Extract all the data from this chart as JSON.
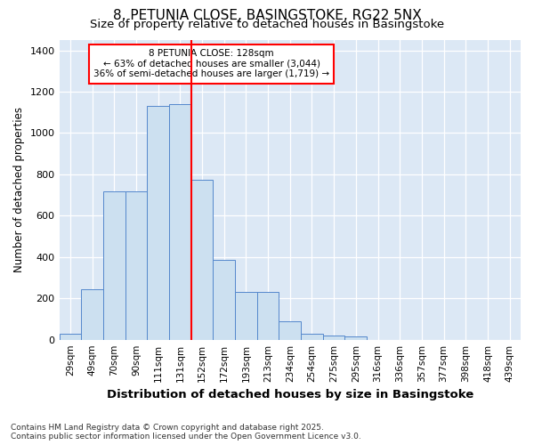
{
  "title1": "8, PETUNIA CLOSE, BASINGSTOKE, RG22 5NX",
  "title2": "Size of property relative to detached houses in Basingstoke",
  "xlabel": "Distribution of detached houses by size in Basingstoke",
  "ylabel": "Number of detached properties",
  "categories": [
    "29sqm",
    "49sqm",
    "70sqm",
    "90sqm",
    "111sqm",
    "131sqm",
    "152sqm",
    "172sqm",
    "193sqm",
    "213sqm",
    "234sqm",
    "254sqm",
    "275sqm",
    "295sqm",
    "316sqm",
    "336sqm",
    "357sqm",
    "377sqm",
    "398sqm",
    "418sqm",
    "439sqm"
  ],
  "values": [
    30,
    245,
    720,
    720,
    1130,
    1140,
    775,
    385,
    230,
    230,
    88,
    30,
    20,
    15,
    0,
    0,
    0,
    0,
    0,
    0,
    0
  ],
  "bar_color": "#cce0f0",
  "bar_edge_color": "#5588cc",
  "vline_label": "8 PETUNIA CLOSE: 128sqm",
  "annotation_line1": "← 63% of detached houses are smaller (3,044)",
  "annotation_line2": "36% of semi-detached houses are larger (1,719) →",
  "vline_color": "red",
  "ylim": [
    0,
    1450
  ],
  "yticks": [
    0,
    200,
    400,
    600,
    800,
    1000,
    1200,
    1400
  ],
  "footnote1": "Contains HM Land Registry data © Crown copyright and database right 2025.",
  "footnote2": "Contains public sector information licensed under the Open Government Licence v3.0.",
  "fig_bg_color": "#ffffff",
  "ax_bg_color": "#dce8f5"
}
